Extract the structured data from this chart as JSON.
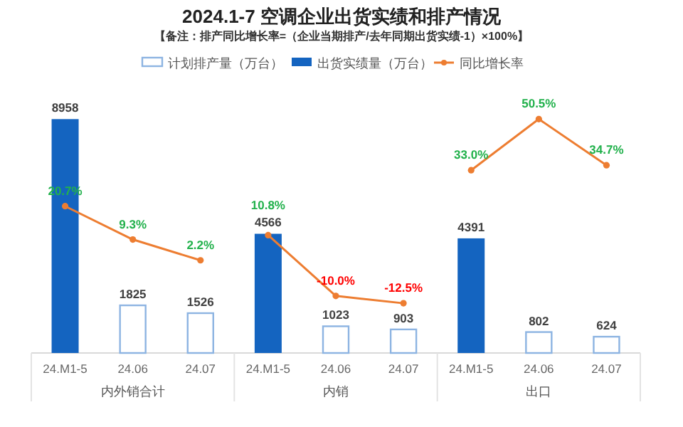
{
  "chart_data": {
    "type": "bar",
    "title": "2024.1-7 空调企业出货实绩和排产情况",
    "subtitle": "【备注：排产同比增长率=（企业当期排产/去年同期出货实绩-1）×100%】",
    "categories": [
      "24.M1-5",
      "24.06",
      "24.07",
      "24.M1-5",
      "24.06",
      "24.07",
      "24.M1-5",
      "24.06",
      "24.07"
    ],
    "annotations": [
      "内外销合计",
      "内销",
      "出口"
    ],
    "series": [
      {
        "name": "计划排产量（万台）",
        "color": "#8db4e2",
        "values": [
          null,
          1825,
          1526,
          null,
          1023,
          903,
          null,
          802,
          624
        ]
      },
      {
        "name": "出货实绩量（万台）",
        "color": "#1464c0",
        "values": [
          8958,
          null,
          null,
          4566,
          null,
          null,
          4391,
          null,
          null
        ]
      },
      {
        "name": "同比增长率",
        "type": "line",
        "axis": "y2",
        "color": "#ed7d31",
        "marker": "circle",
        "values": [
          20.7,
          9.3,
          2.2,
          10.8,
          -10.0,
          -12.5,
          33.0,
          50.5,
          34.7
        ],
        "value_labels": [
          "20.7%",
          "9.3%",
          "2.2%",
          "10.8%",
          "-10.0%",
          "-12.5%",
          "33.0%",
          "50.5%",
          "34.7%"
        ]
      }
    ],
    "data_labels": true,
    "legend": "top"
  }
}
